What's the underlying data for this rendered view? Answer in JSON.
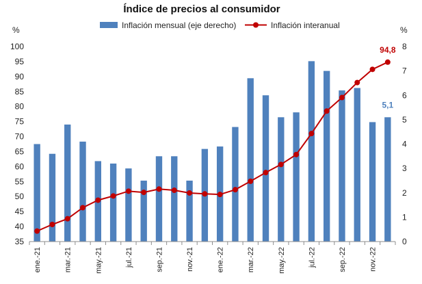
{
  "chart_data": {
    "type": "bar+line",
    "title": "Índice de precios al consumidor",
    "left_axis_unit": "%",
    "right_axis_unit": "%",
    "left_ylim": [
      35,
      100
    ],
    "left_ticks": [
      35,
      40,
      45,
      50,
      55,
      60,
      65,
      70,
      75,
      80,
      85,
      90,
      95,
      100
    ],
    "right_ylim": [
      0,
      8
    ],
    "right_ticks": [
      0,
      1,
      2,
      3,
      4,
      5,
      6,
      7,
      8
    ],
    "categories": [
      "ene.-21",
      "feb.-21",
      "mar.-21",
      "abr.-21",
      "may.-21",
      "jun.-21",
      "jul.-21",
      "ago.-21",
      "sep.-21",
      "oct.-21",
      "nov.-21",
      "dic.-21",
      "ene.-22",
      "feb.-22",
      "mar.-22",
      "abr.-22",
      "may.-22",
      "jun.-22",
      "jul.-22",
      "ago.-22",
      "sep.-22",
      "oct.-22",
      "nov.-22",
      "dic.-22"
    ],
    "x_tick_labels": [
      "ene.-21",
      "mar.-21",
      "may.-21",
      "jul.-21",
      "sep.-21",
      "nov.-21",
      "ene.-22",
      "mar.-22",
      "may.-22",
      "jul.-22",
      "sep.-22",
      "nov.-22"
    ],
    "series": [
      {
        "name": "Inflación mensual (eje derecho)",
        "type": "bar",
        "axis": "right",
        "color": "#4F81BD",
        "values": [
          4.0,
          3.6,
          4.8,
          4.1,
          3.3,
          3.2,
          3.0,
          2.5,
          3.5,
          3.5,
          2.5,
          3.8,
          3.9,
          4.7,
          6.7,
          6.0,
          5.1,
          5.3,
          7.4,
          7.0,
          6.2,
          6.3,
          4.9,
          5.1
        ]
      },
      {
        "name": "Inflación interanual",
        "type": "line",
        "axis": "left",
        "color": "#C00000",
        "values": [
          38.5,
          40.7,
          42.6,
          46.3,
          48.8,
          50.2,
          51.8,
          51.4,
          52.5,
          52.1,
          51.2,
          50.9,
          50.7,
          52.3,
          55.1,
          58.0,
          60.7,
          64.0,
          71.0,
          78.5,
          83.0,
          88.0,
          92.4,
          94.8
        ]
      }
    ],
    "annotations": [
      {
        "text": "94,8",
        "series": 1,
        "index": 23,
        "color": "#C00000"
      },
      {
        "text": "5,1",
        "series": 0,
        "index": 23,
        "color": "#4F81BD"
      }
    ]
  }
}
